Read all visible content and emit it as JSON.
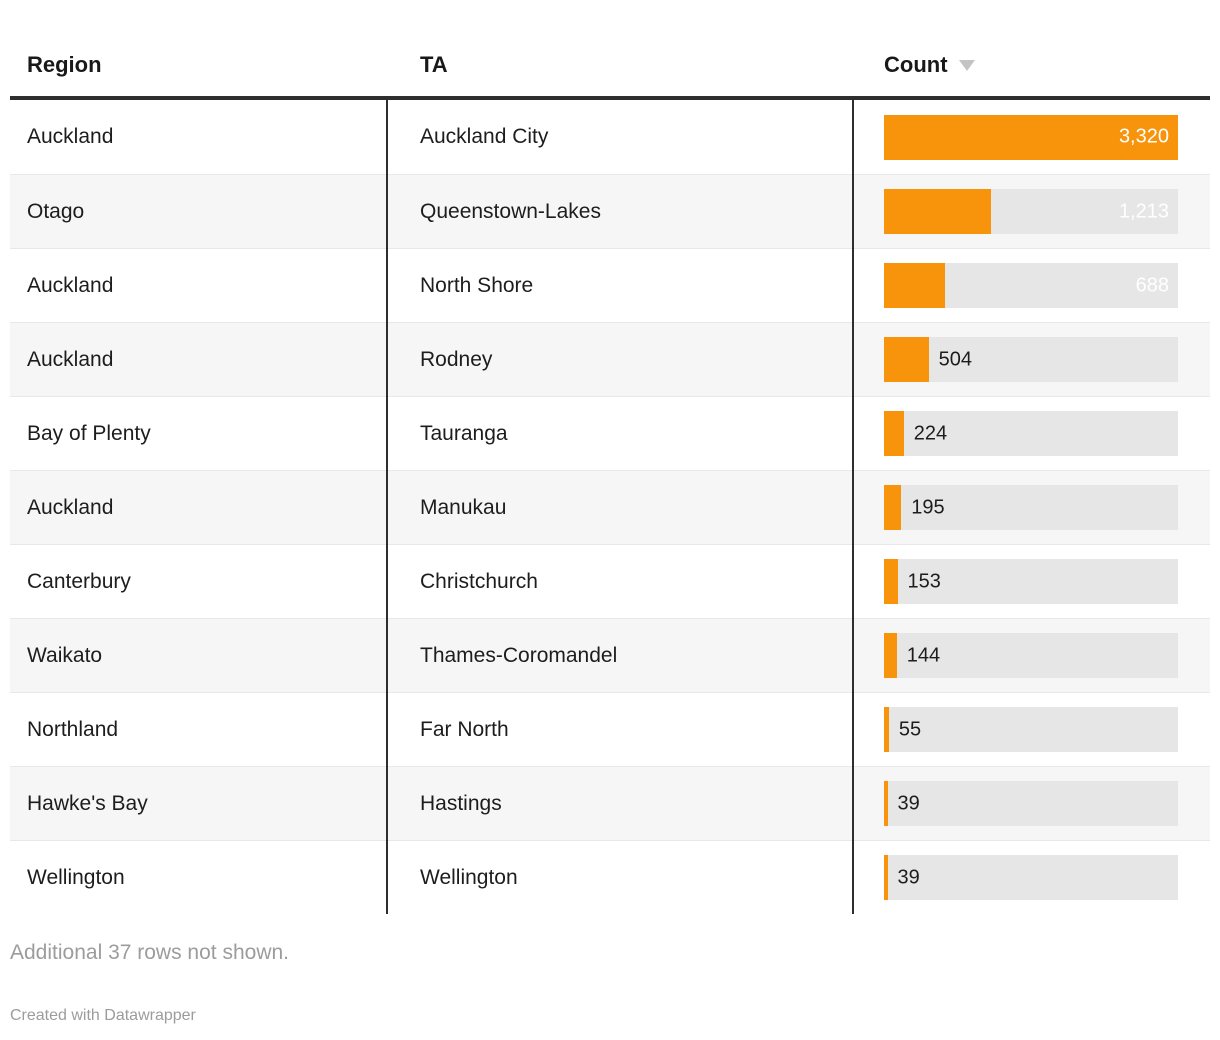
{
  "table": {
    "columns": [
      {
        "id": "region",
        "label": "Region"
      },
      {
        "id": "ta",
        "label": "TA"
      },
      {
        "id": "count",
        "label": "Count",
        "sorted": "desc"
      }
    ],
    "bar_max": 3320,
    "rows": [
      {
        "region": "Auckland",
        "ta": "Auckland City",
        "count": 3320,
        "count_label": "3,320"
      },
      {
        "region": "Otago",
        "ta": "Queenstown-Lakes",
        "count": 1213,
        "count_label": "1,213"
      },
      {
        "region": "Auckland",
        "ta": "North Shore",
        "count": 688,
        "count_label": "688"
      },
      {
        "region": "Auckland",
        "ta": "Rodney",
        "count": 504,
        "count_label": "504"
      },
      {
        "region": "Bay of Plenty",
        "ta": "Tauranga",
        "count": 224,
        "count_label": "224"
      },
      {
        "region": "Auckland",
        "ta": "Manukau",
        "count": 195,
        "count_label": "195"
      },
      {
        "region": "Canterbury",
        "ta": "Christchurch",
        "count": 153,
        "count_label": "153"
      },
      {
        "region": "Waikato",
        "ta": "Thames-Coromandel",
        "count": 144,
        "count_label": "144"
      },
      {
        "region": "Northland",
        "ta": "Far North",
        "count": 55,
        "count_label": "55"
      },
      {
        "region": "Hawke's Bay",
        "ta": "Hastings",
        "count": 39,
        "count_label": "39"
      },
      {
        "region": "Wellington",
        "ta": "Wellington",
        "count": 39,
        "count_label": "39"
      }
    ]
  },
  "chart_data": {
    "type": "table",
    "columns": [
      "Region",
      "TA",
      "Count"
    ],
    "rows": [
      [
        "Auckland",
        "Auckland City",
        3320
      ],
      [
        "Otago",
        "Queenstown-Lakes",
        1213
      ],
      [
        "Auckland",
        "North Shore",
        688
      ],
      [
        "Auckland",
        "Rodney",
        504
      ],
      [
        "Bay of Plenty",
        "Tauranga",
        224
      ],
      [
        "Auckland",
        "Manukau",
        195
      ],
      [
        "Canterbury",
        "Christchurch",
        153
      ],
      [
        "Waikato",
        "Thames-Coromandel",
        144
      ],
      [
        "Northland",
        "Far North",
        55
      ],
      [
        "Hawke's Bay",
        "Hastings",
        39
      ],
      [
        "Wellington",
        "Wellington",
        39
      ]
    ],
    "sort": {
      "column": "Count",
      "direction": "desc"
    },
    "bar_column": "Count",
    "bar_max": 3320,
    "note": "Additional 37 rows not shown.",
    "attribution": "Created with Datawrapper"
  },
  "footer": {
    "note": "Additional 37 rows not shown.",
    "attribution": "Created with Datawrapper"
  },
  "colors": {
    "bar": "#f7940b",
    "track": "#e6e6e6",
    "stripe": "#f6f6f6",
    "divider": "#2e2e2e",
    "row_line": "#e8e8e8",
    "text": "#1d1d1d",
    "muted": "#9c9c9c",
    "sort_icon": "#c4c4c4"
  }
}
